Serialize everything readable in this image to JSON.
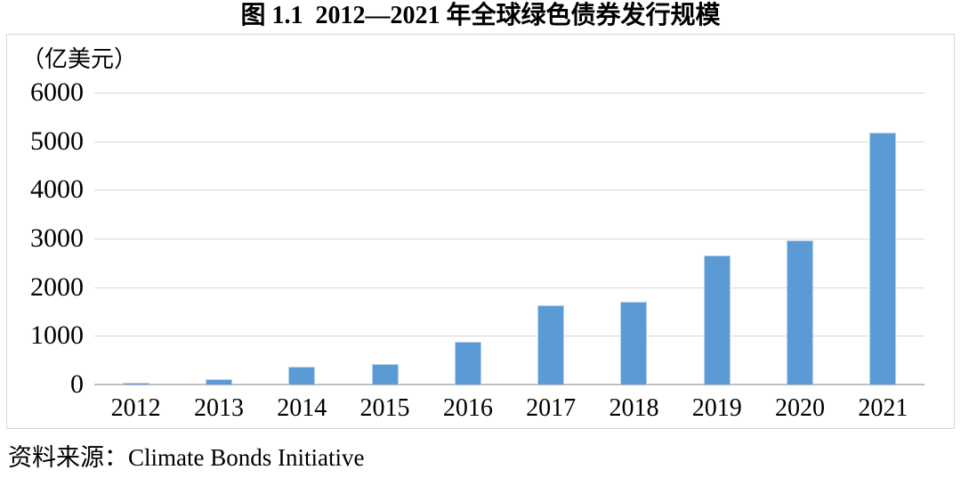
{
  "title": "图 1.1  2012—2021 年全球绿色债券发行规模",
  "source_note": "资料来源：Climate Bonds Initiative",
  "colors": {
    "bar": "#5b9bd5",
    "bar_edge": "#b9d1ec",
    "gridline": "#d9d9d9",
    "axis_line": "#bfbfbf",
    "box_border": "#d8d8d8",
    "text": "#000000",
    "background": "#ffffff"
  },
  "chart_data": {
    "type": "bar",
    "title": "图 1.1  2012—2021 年全球绿色债券发行规模",
    "unit_label": "（亿美元）",
    "xlabel": "",
    "ylabel": "亿美元",
    "categories": [
      "2012",
      "2013",
      "2014",
      "2015",
      "2016",
      "2017",
      "2018",
      "2019",
      "2020",
      "2021"
    ],
    "values": [
      30,
      110,
      365,
      420,
      870,
      1620,
      1700,
      2660,
      2970,
      5180
    ],
    "ylim": [
      0,
      6000
    ],
    "yticks": [
      0,
      1000,
      2000,
      3000,
      4000,
      5000,
      6000
    ],
    "grid": "horizontal",
    "legend": "none",
    "source": "Climate Bonds Initiative"
  }
}
